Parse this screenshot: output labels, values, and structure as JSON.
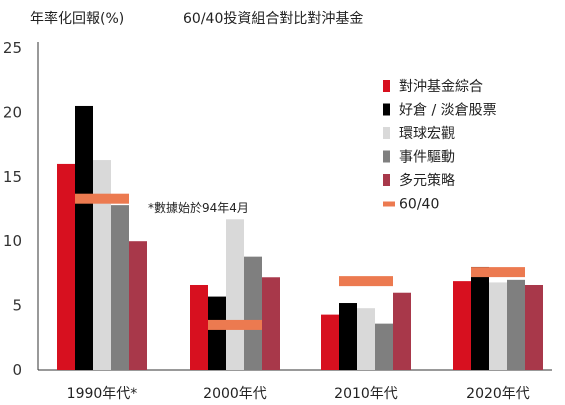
{
  "chart_data": {
    "type": "bar",
    "ylabel": "年率化回報(%)",
    "title": "60/40投資組合對比對沖基金",
    "ylim": [
      0,
      25
    ],
    "yticks": [
      0,
      5,
      10,
      15,
      20,
      25
    ],
    "categories": [
      "1990年代*",
      "2000年代",
      "2010年代",
      "2020年代"
    ],
    "series": [
      {
        "name": "對沖基金綜合",
        "color": "#d7101f",
        "values": [
          16.0,
          6.6,
          4.3,
          6.9
        ]
      },
      {
        "name": "好倉 / 淡倉股票",
        "color": "#000000",
        "values": [
          20.5,
          5.7,
          5.2,
          8.0
        ]
      },
      {
        "name": "環球宏觀",
        "color": "#d9d9d9",
        "values": [
          16.3,
          11.7,
          4.8,
          6.8
        ]
      },
      {
        "name": "事件驅動",
        "color": "#7f7f7f",
        "values": [
          12.8,
          8.8,
          3.6,
          7.0
        ]
      },
      {
        "name": "多元策略",
        "color": "#a8384a",
        "values": [
          10.0,
          7.2,
          6.0,
          6.6
        ]
      }
    ],
    "markers": {
      "name": "60/40",
      "color": "#ec7a50",
      "values": [
        13.3,
        3.5,
        6.9,
        7.6
      ]
    },
    "annotation": "*數據始於94年4月",
    "grid": false,
    "legend_position": "right"
  }
}
